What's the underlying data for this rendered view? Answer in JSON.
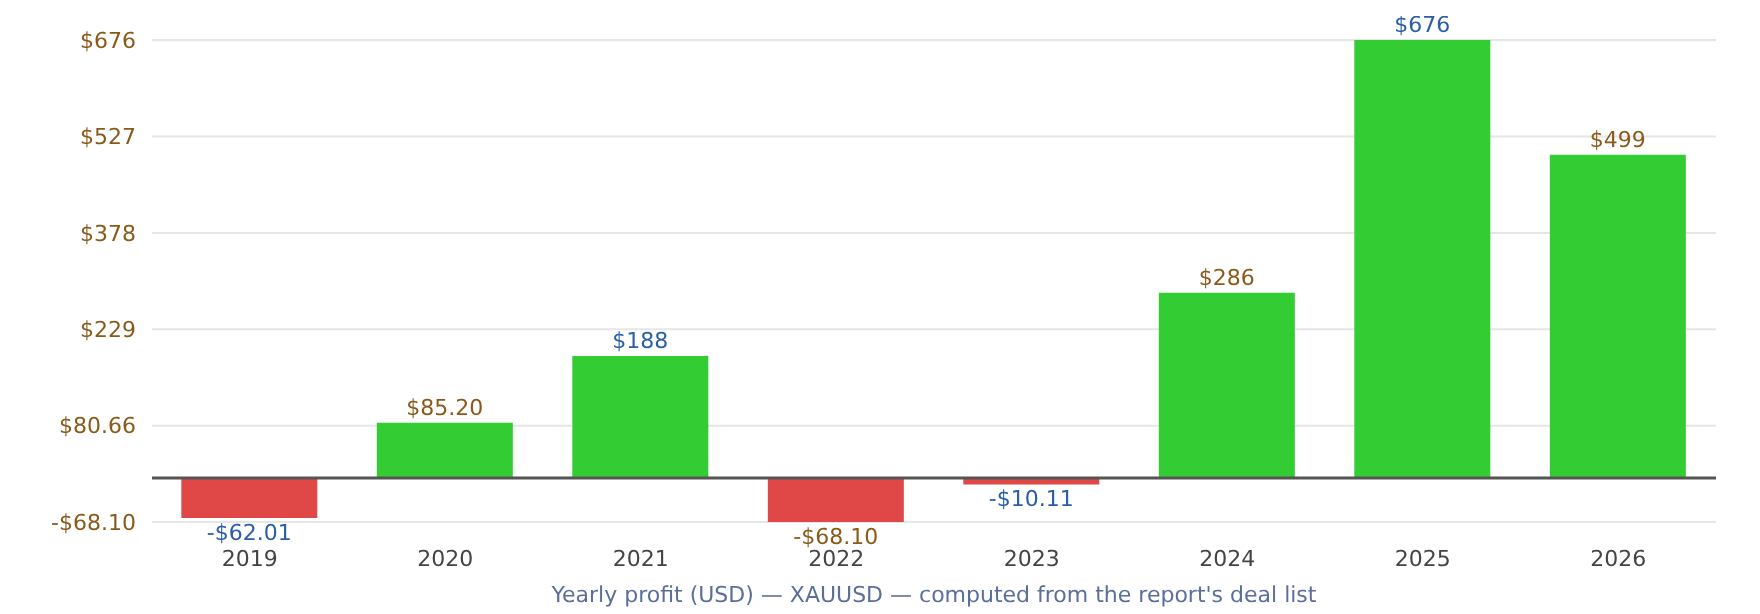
{
  "chart_data": {
    "type": "bar",
    "xlabel": "Yearly profit (USD) — XAUUSD — computed from the report's deal list",
    "categories": [
      "2019",
      "2020",
      "2021",
      "2022",
      "2023",
      "2024",
      "2025",
      "2026"
    ],
    "values": [
      -62.01,
      85.2,
      188,
      -68.1,
      -10.11,
      286,
      676,
      499
    ],
    "colors": [
      "#e04848",
      "#33cc33",
      "#33cc33",
      "#e04848",
      "#e04848",
      "#33cc33",
      "#33cc33",
      "#33cc33"
    ],
    "value_labels": [
      "-$62.01",
      "$85.20",
      "$188",
      "-$68.10",
      "-$10.11",
      "$286",
      "$676",
      "$499"
    ],
    "ylim": [
      -68.1,
      676
    ],
    "yticks": [
      {
        "value": -68.1,
        "label": "-$68.10"
      },
      {
        "value": 80.66,
        "label": "$80.66"
      },
      {
        "value": 229.42,
        "label": "$229"
      },
      {
        "value": 378.18,
        "label": "$378"
      },
      {
        "value": 526.94,
        "label": "$527"
      },
      {
        "value": 675.7,
        "label": "$676"
      }
    ],
    "grid": "y",
    "ref_lines": [
      {
        "axis": "y",
        "value": 0,
        "color": "#555555"
      }
    ]
  }
}
